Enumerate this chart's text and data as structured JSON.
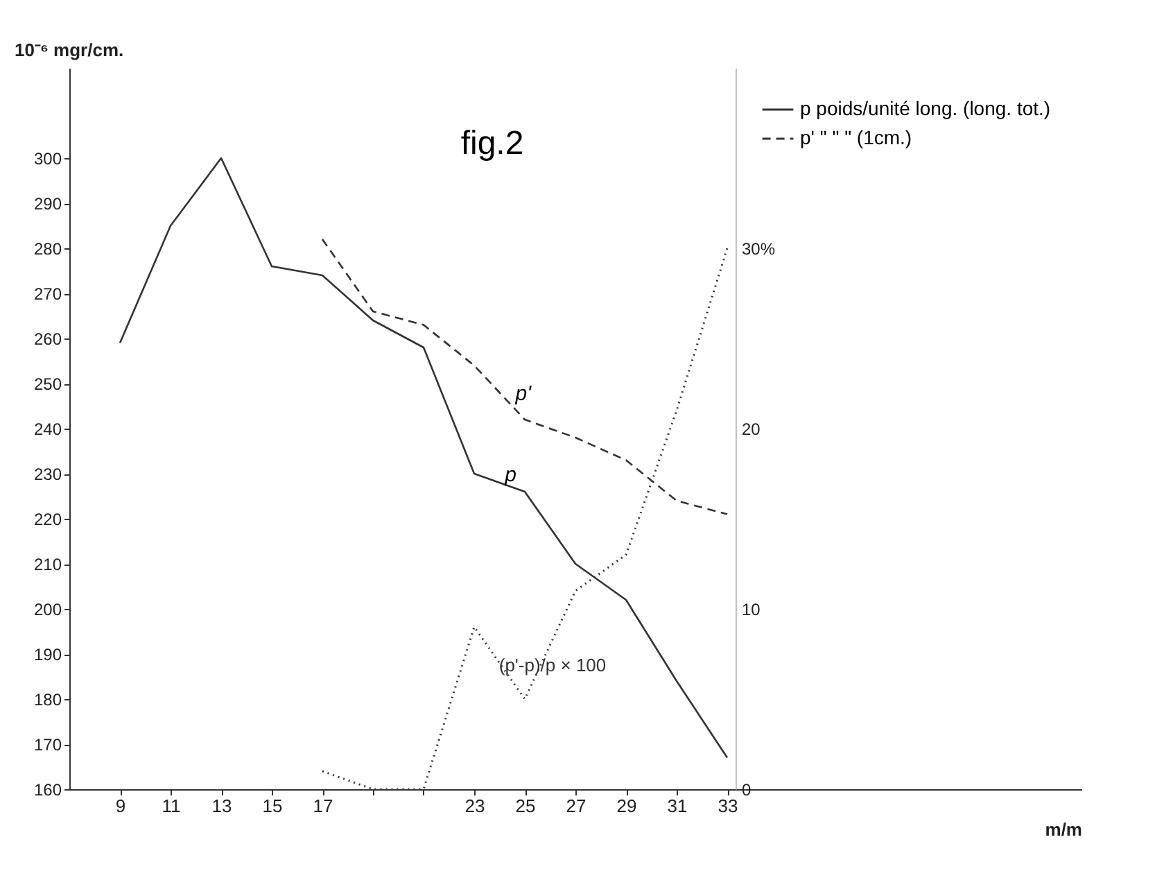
{
  "chart_data": {
    "type": "line",
    "title": "fig.2",
    "xlabel": "m/m",
    "ylabel": "10⁻⁶ mgr/cm.",
    "x": [
      9,
      11,
      13,
      15,
      17,
      19,
      21,
      23,
      25,
      27,
      29,
      31,
      33
    ],
    "xlim": [
      7,
      47
    ],
    "xticks": [
      9,
      11,
      13,
      15,
      17,
      {
        "value": 19,
        "label": null
      },
      {
        "value": 21,
        "label": null
      },
      23,
      25,
      27,
      29,
      31,
      33
    ],
    "ylim": [
      160,
      320
    ],
    "yticks": [
      160,
      170,
      180,
      190,
      200,
      210,
      220,
      230,
      240,
      250,
      260,
      270,
      280,
      290,
      300
    ],
    "y2lim": [
      0,
      40
    ],
    "y2ticks": [
      0,
      10,
      20,
      {
        "value": 30,
        "label": "30%"
      }
    ],
    "series": [
      {
        "name": "p  poids/unité long. (long. tot.)",
        "color": "#333333",
        "line_style": "solid",
        "values": [
          259,
          285,
          300,
          276,
          274,
          264,
          258,
          230,
          226,
          210,
          202,
          184,
          167
        ]
      },
      {
        "name": "p'  \"  \"  \"  (1cm.)",
        "color": "#333333",
        "line_style": "dashed",
        "values": [
          null,
          null,
          null,
          null,
          282,
          266,
          263,
          254,
          242,
          238,
          233,
          224,
          221
        ]
      },
      {
        "name": "(p'-p)/p × 100",
        "color": "#333333",
        "line_style": "dotted",
        "axis": "y2",
        "values": [
          null,
          null,
          null,
          null,
          1,
          0,
          0,
          9,
          5,
          11,
          13,
          21,
          30
        ]
      }
    ],
    "annotations": [
      {
        "text": "p",
        "x": 24,
        "y": 228
      },
      {
        "text": "p'",
        "x": 24.5,
        "y": 246
      }
    ],
    "legend": "top right",
    "grid": false
  }
}
